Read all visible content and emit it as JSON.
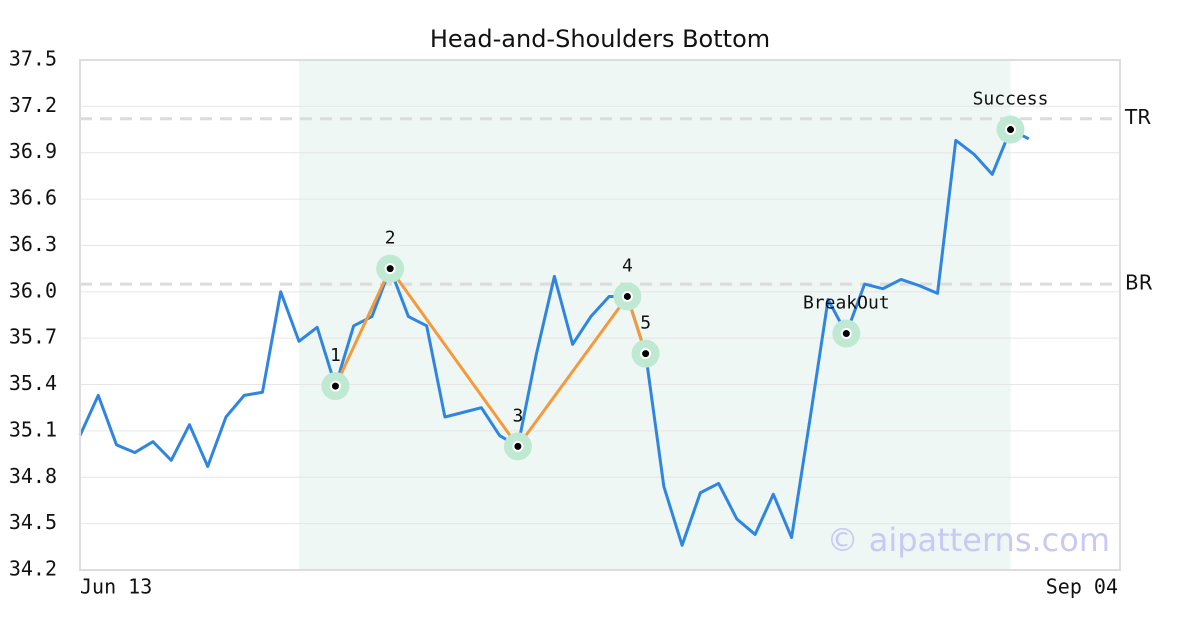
{
  "chart_data": {
    "type": "line",
    "title": "Head-and-Shoulders Bottom",
    "color": "#2f86e0",
    "values": [
      35.07,
      35.33,
      35.01,
      34.96,
      35.03,
      34.91,
      35.14,
      34.87,
      35.19,
      35.33,
      35.35,
      36.0,
      35.68,
      35.77,
      35.39,
      35.78,
      35.84,
      36.15,
      35.84,
      35.78,
      35.19,
      35.22,
      35.25,
      35.07,
      35.0,
      35.59,
      36.1,
      35.66,
      35.84,
      35.97,
      35.97,
      35.6,
      34.74,
      34.36,
      34.7,
      34.76,
      34.53,
      34.43,
      34.69,
      34.41,
      35.17,
      35.95,
      35.73,
      36.05,
      36.02,
      36.08,
      36.04,
      35.99,
      36.98,
      36.89,
      36.76,
      37.05,
      36.99
    ],
    "xlim": [
      0,
      57
    ],
    "xticks": [
      {
        "value": 0,
        "label": "Jun 13"
      },
      {
        "value": 57,
        "label": "Sep 04"
      }
    ],
    "ylim": [
      34.2,
      37.5
    ],
    "yticks": [
      34.2,
      34.5,
      34.8,
      35.1,
      35.4,
      35.7,
      {
        "value": 36,
        "label": "36.0"
      },
      36.3,
      36.6,
      36.9,
      37.2,
      37.5
    ],
    "grid": true,
    "shade": [
      12,
      51
    ],
    "pattern_color": "#f59a3c",
    "levels": [
      {
        "label": "TR",
        "value": 37.12
      },
      {
        "label": "BR",
        "value": 36.05
      }
    ],
    "markers": [
      {
        "label": "1",
        "x": 14,
        "value": 35.39
      },
      {
        "label": "2",
        "x": 17,
        "value": 36.15
      },
      {
        "label": "3",
        "x": 24,
        "value": 35.0
      },
      {
        "label": "4",
        "x": 30,
        "value": 35.97
      },
      {
        "label": "5",
        "x": 31,
        "value": 35.6
      },
      {
        "label": "BreakOut",
        "x": 42,
        "value": 35.73
      },
      {
        "label": "Success",
        "x": 51,
        "value": 37.05
      }
    ],
    "pattern_points": 5,
    "watermark": "© aipatterns.com"
  }
}
